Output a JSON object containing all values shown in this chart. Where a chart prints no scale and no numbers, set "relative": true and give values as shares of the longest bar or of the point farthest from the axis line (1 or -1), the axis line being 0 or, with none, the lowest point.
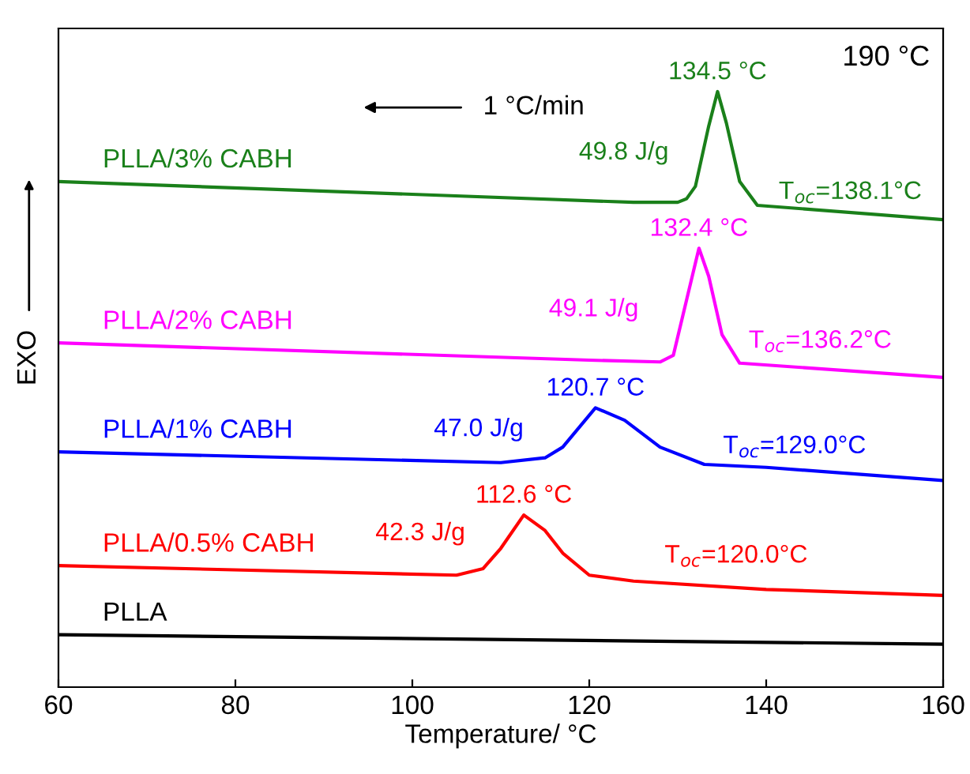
{
  "chart_data": {
    "type": "line",
    "relative": true,
    "xlabel": "Temperature/ °C",
    "ylabel": "EXO",
    "xlim": [
      60,
      160
    ],
    "xticks": [
      60,
      80,
      100,
      120,
      140,
      160
    ],
    "tick_labels": "x",
    "grid": false,
    "legend": false,
    "series": [
      {
        "name": "PLLA",
        "color": "#000000",
        "x": [
          60,
          160
        ],
        "values": [
          0.088,
          0.072
        ]
      },
      {
        "name": "PLLA/0.5% CABH",
        "color": "#ff0000",
        "x": [
          60,
          105,
          108,
          110,
          112.6,
          115,
          117,
          120,
          125,
          140,
          160
        ],
        "values": [
          0.204,
          0.188,
          0.199,
          0.233,
          0.289,
          0.263,
          0.225,
          0.188,
          0.178,
          0.164,
          0.154
        ]
      },
      {
        "name": "PLLA/1% CABH",
        "color": "#0000ff",
        "x": [
          60,
          110,
          115,
          117,
          120.7,
          124,
          128,
          133,
          140,
          160
        ],
        "values": [
          0.395,
          0.377,
          0.385,
          0.403,
          0.469,
          0.448,
          0.403,
          0.374,
          0.369,
          0.347
        ]
      },
      {
        "name": "PLLA/2% CABH",
        "color": "#ff00ff",
        "x": [
          60,
          120,
          128,
          129.5,
          131,
          132.4,
          133.5,
          135,
          137,
          160
        ],
        "values": [
          0.578,
          0.549,
          0.546,
          0.557,
          0.65,
          0.737,
          0.69,
          0.592,
          0.544,
          0.52
        ]
      },
      {
        "name": "PLLA/3% CABH",
        "color": "#1a801a",
        "x": [
          60,
          125,
          130,
          131,
          132,
          133.5,
          134.5,
          135.5,
          137,
          139,
          160
        ],
        "values": [
          0.849,
          0.814,
          0.814,
          0.82,
          0.841,
          0.942,
          1,
          0.947,
          0.849,
          0.809,
          0.785
        ]
      }
    ],
    "annotations": [
      "1 °C/min",
      "190 °C",
      {
        "text": "134.5 °C",
        "x": 134.5,
        "y": 1
      },
      "49.8 J/g",
      "T$_{oc}$=138.1°C",
      {
        "text": "132.4 °C",
        "x": 132.4,
        "y": 0.737
      },
      "49.1 J/g",
      "T$_{oc}$=136.2°C",
      {
        "text": "120.7 °C",
        "x": 120.7,
        "y": 0.469
      },
      "47.0 J/g",
      "T$_{oc}$=129.0°C",
      {
        "text": "112.6 °C",
        "x": 112.6,
        "y": 0.289
      },
      "42.3 J/g",
      "T$_{oc}$=120.0°C"
    ]
  }
}
